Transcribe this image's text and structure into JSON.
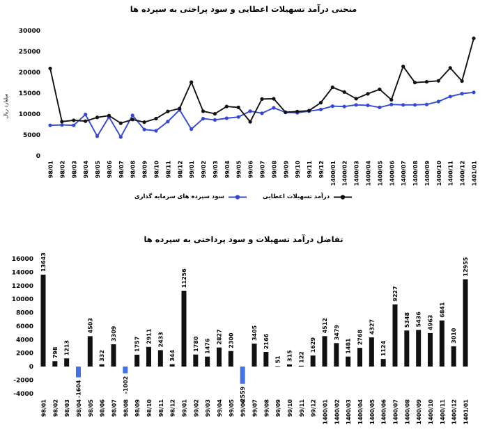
{
  "chart_data": [
    {
      "id": "line-chart",
      "type": "line",
      "title": "منحنی درآمد تسهیلات اعطایی و سود پراختی به سپرده ها",
      "ylabel": "میلیارد ریال",
      "ylim": [
        0,
        30000
      ],
      "yticks": [
        0,
        5000,
        10000,
        15000,
        20000,
        25000,
        30000
      ],
      "grid": false,
      "legend_position": "bottom",
      "categories": [
        "98/01",
        "98/02",
        "98/03",
        "98/04",
        "98/05",
        "98/06",
        "98/07",
        "98/08",
        "98/09",
        "98/10",
        "98/11",
        "98/12",
        "99/01",
        "99/02",
        "99/03",
        "99/04",
        "99/05",
        "99/06",
        "99/07",
        "99/08",
        "99/09",
        "99/10",
        "99/11",
        "99/12",
        "1400/01",
        "1400/02",
        "1400/03",
        "1400/04",
        "1400/05",
        "1400/06",
        "1400/07",
        "1400/08",
        "1400/09",
        "1400/10",
        "1400/11",
        "1400/12",
        "1401/01"
      ],
      "series": [
        {
          "name": "درآمد تسهیلات اعطایی",
          "color": "#111111",
          "values": [
            20943,
            8198,
            8513,
            8296,
            9203,
            9632,
            7809,
            8698,
            8057,
            8911,
            10633,
            11344,
            17656,
            10680,
            10076,
            11827,
            11600,
            8141,
            13605,
            13666,
            10451,
            10615,
            10822,
            12729,
            16412,
            15279,
            13681,
            14868,
            15927,
            13424,
            21427,
            17548,
            17736,
            17963,
            21041,
            17910,
            28155
          ]
        },
        {
          "name": "سود سپرده های سرمایه گذاری",
          "color": "#3448d0",
          "values": [
            7300,
            7400,
            7300,
            9900,
            4700,
            9300,
            4500,
            9700,
            6300,
            6000,
            8200,
            11000,
            6400,
            8900,
            8600,
            9000,
            9300,
            10700,
            10200,
            11500,
            10400,
            10300,
            10700,
            11100,
            11900,
            11800,
            12200,
            12100,
            11600,
            12300,
            12200,
            12200,
            12300,
            13000,
            14200,
            14900,
            15200
          ]
        }
      ]
    },
    {
      "id": "bar-chart",
      "type": "bar",
      "title": "تفاضل درآمد تسهیلات و سود پرداختی به سپرده ها",
      "ylim": [
        -4000,
        16000
      ],
      "yticks": [
        16000,
        14000,
        12000,
        10000,
        8000,
        6000,
        4000,
        2000,
        0,
        -2000,
        -4000
      ],
      "grid": false,
      "data_labels": true,
      "positive_color": "#111111",
      "negative_color": "#4273e2",
      "categories": [
        "98/01",
        "98/02",
        "98/03",
        "98/04",
        "98/05",
        "98/06",
        "98/07",
        "98/08",
        "98/09",
        "98/10",
        "98/11",
        "98/12",
        "99/01",
        "99/02",
        "99/03",
        "99/04",
        "99/05",
        "99/06",
        "99/07",
        "99/08",
        "99/09",
        "99/10",
        "99/11",
        "99/12",
        "1400/01",
        "1400/02",
        "1400/03",
        "1400/04",
        "1400/05",
        "1400/06",
        "1400/07",
        "1400/08",
        "1400/09",
        "1400/10",
        "1400/11",
        "1400/12",
        "1401/01"
      ],
      "values": [
        13643,
        798,
        1213,
        -1604,
        4503,
        332,
        3309,
        -1002,
        1757,
        2911,
        2433,
        344,
        11256,
        1780,
        1476,
        2827,
        2300,
        -2559,
        3405,
        2166,
        51,
        315,
        122,
        1629,
        4512,
        3479,
        1481,
        2768,
        4327,
        1124,
        9227,
        5348,
        5436,
        4963,
        6841,
        3010,
        12955
      ]
    }
  ]
}
